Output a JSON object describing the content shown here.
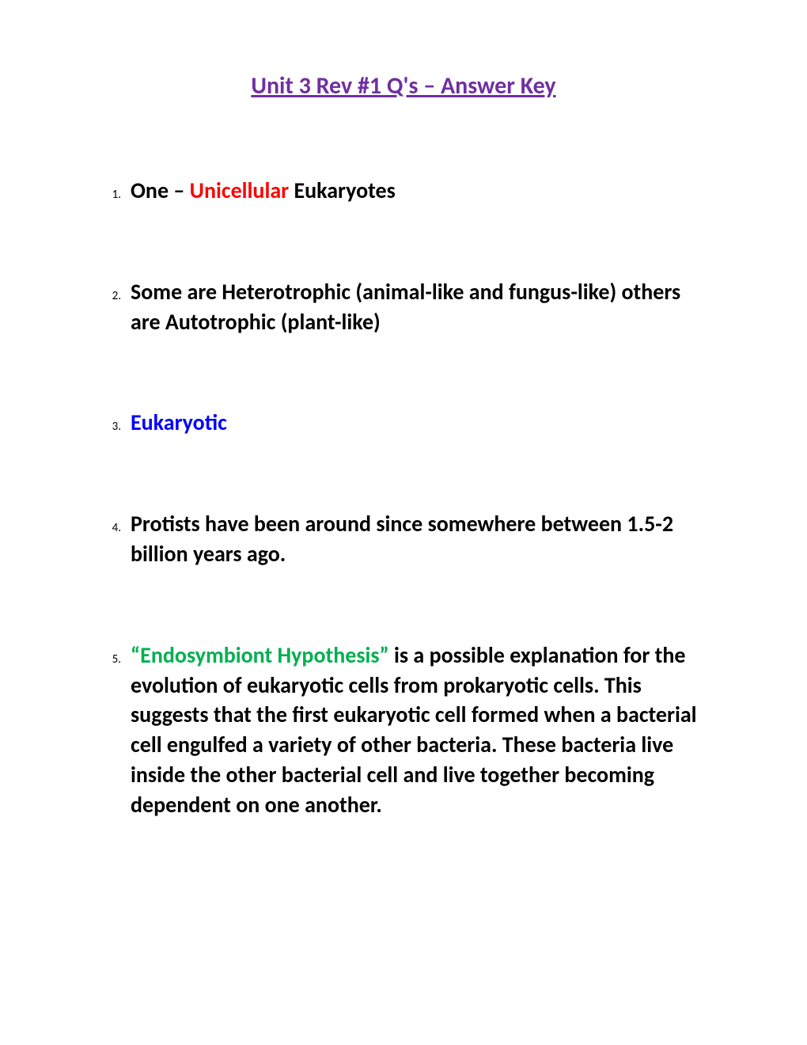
{
  "title": "Unit 3 Rev #1 Q's – Answer Key",
  "colors": {
    "title": "#7030a0",
    "red": "#ff0000",
    "blue": "#0000ff",
    "green": "#00b050",
    "black": "#000000",
    "background": "#ffffff"
  },
  "typography": {
    "title_fontsize": 30,
    "number_fontsize": 15,
    "content_fontsize": 28,
    "font_family": "Calibri"
  },
  "items": [
    {
      "number": "1.",
      "parts": [
        {
          "text": "One – ",
          "color": "black"
        },
        {
          "text": "Unicellular",
          "color": "red"
        },
        {
          "text": " Eukaryotes",
          "color": "black"
        }
      ]
    },
    {
      "number": "2.",
      "parts": [
        {
          "text": "Some are Heterotrophic (animal-like and fungus-like)  others are Autotrophic (plant-like)",
          "color": "black"
        }
      ]
    },
    {
      "number": "3.",
      "parts": [
        {
          "text": "Eukaryotic",
          "color": "blue"
        }
      ]
    },
    {
      "number": "4.",
      "parts": [
        {
          "text": "Protists have been around since somewhere between 1.5-2 billion years ago.",
          "color": "black"
        }
      ]
    },
    {
      "number": "5.",
      "parts": [
        {
          "text": " “Endosymbiont Hypothesis” ",
          "color": "green"
        },
        {
          "text": "is a possible explanation for the evolution of eukaryotic cells from prokaryotic cells.  This suggests that the first eukaryotic cell formed when a bacterial cell engulfed a variety of other bacteria.  These bacteria live inside the other bacterial cell and live together becoming dependent on one another.",
          "color": "black"
        }
      ]
    }
  ]
}
